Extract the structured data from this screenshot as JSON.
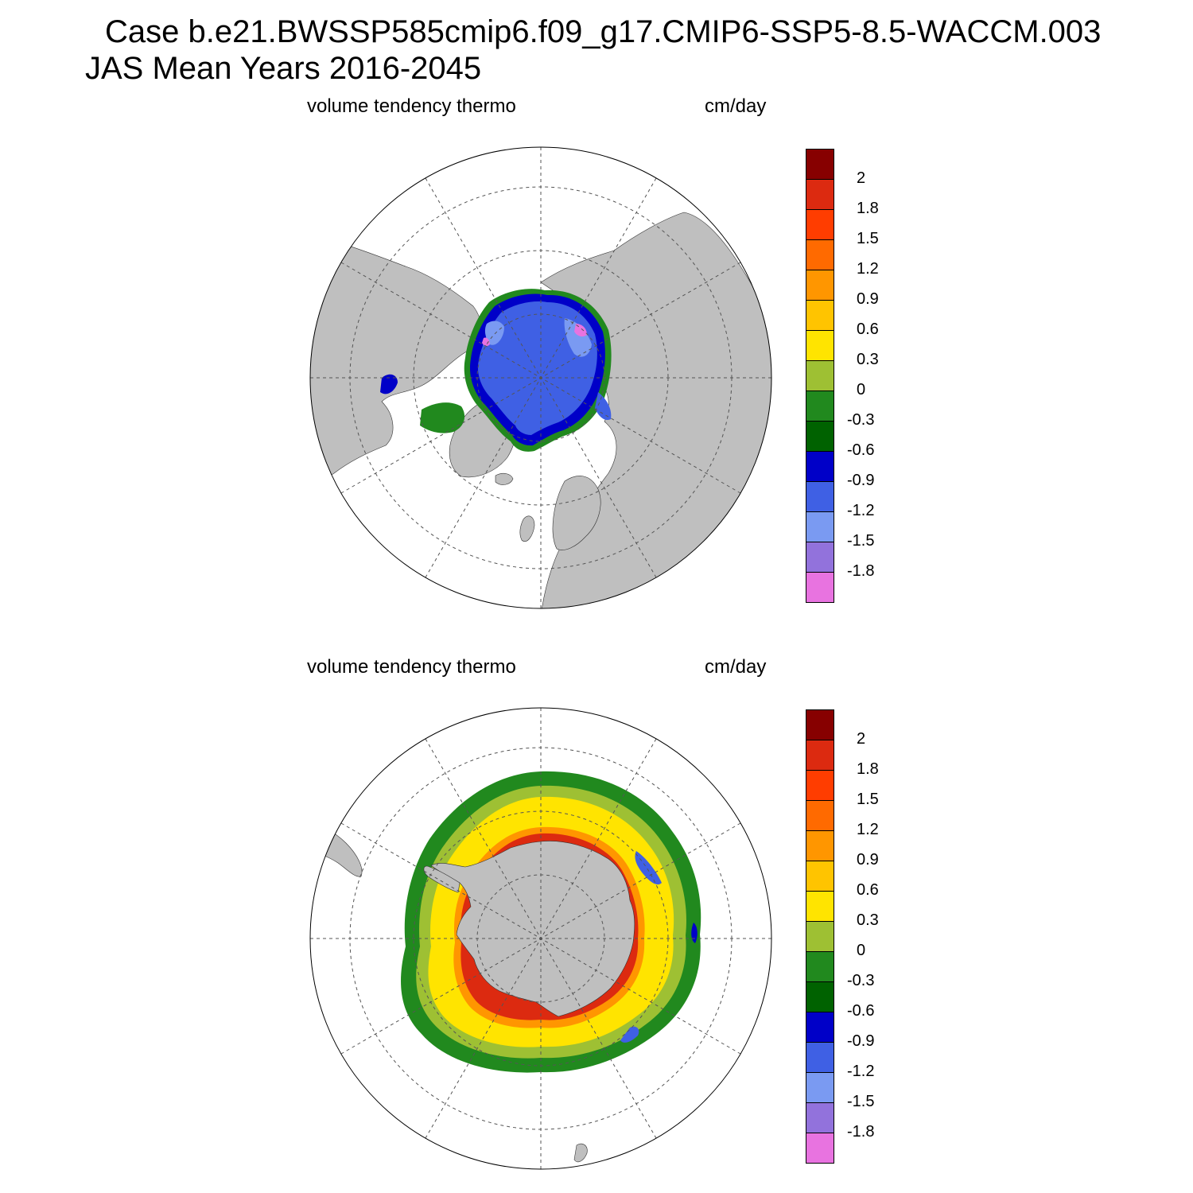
{
  "title": {
    "line1": "Case b.e21.BWSSP585cmip6.f09_g17.CMIP6-SSP5-8.5-WACCM.003",
    "line2": "JAS Mean   Years 2016-2045"
  },
  "colors": {
    "land": "#bfbfbf",
    "ocean": "#ffffff",
    "grid": "#555555"
  },
  "colorbar": {
    "labels": [
      "2",
      "1.8",
      "1.5",
      "1.2",
      "0.9",
      "0.6",
      "0.3",
      "0",
      "-0.3",
      "-0.6",
      "-0.9",
      "-1.2",
      "-1.5",
      "-1.8"
    ],
    "colors": [
      "#870000",
      "#dc2a10",
      "#ff3d00",
      "#ff6a00",
      "#ff9600",
      "#ffc400",
      "#ffe400",
      "#9ec033",
      "#21891e",
      "#006200",
      "#0000c8",
      "#3f60e4",
      "#7a9af2",
      "#9272dc",
      "#e873e0"
    ]
  },
  "panels": [
    {
      "id": "north",
      "hemisphere": "Arctic",
      "variable": "volume tendency thermo",
      "units": "cm/day"
    },
    {
      "id": "south",
      "hemisphere": "Antarctic",
      "variable": "volume tendency thermo",
      "units": "cm/day"
    }
  ]
}
